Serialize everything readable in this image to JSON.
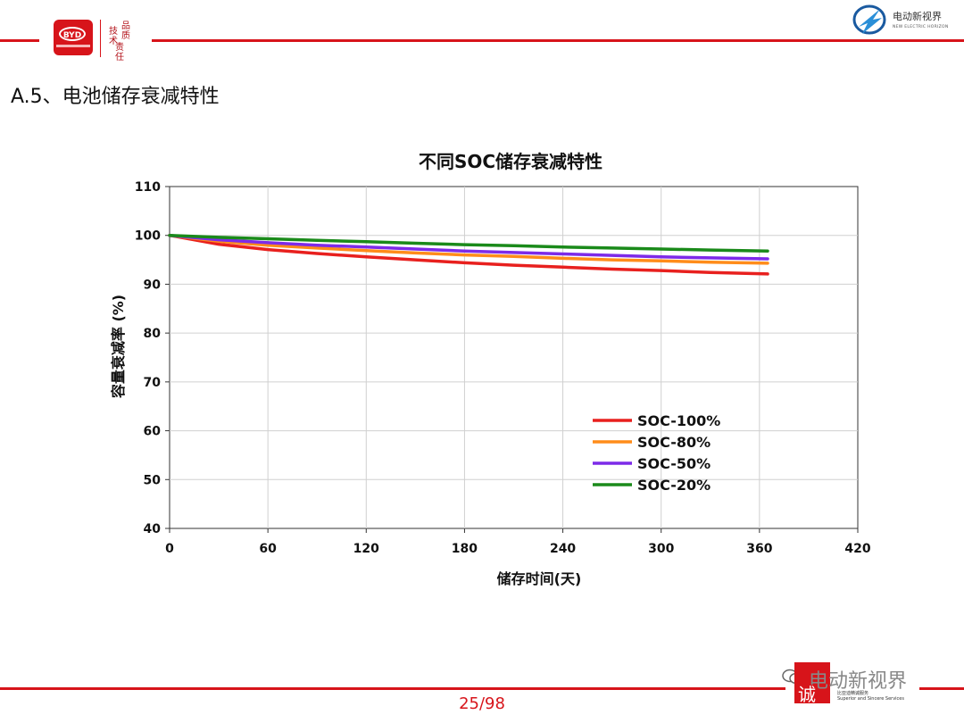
{
  "header": {
    "logo_text": "BYD",
    "seal_text": [
      "技术",
      "品质",
      "责任"
    ],
    "brand_title": "电动新视界",
    "brand_sub": "NEW ELECTRIC HORIZON",
    "accent_color": "#d7141a"
  },
  "page_heading": "A.5、电池储存衰减特性",
  "chart_data": {
    "type": "line",
    "title": "不同SOC储存衰减特性",
    "xlabel": "储存时间(天)",
    "ylabel": "容量衰减率 (%)",
    "xlim": [
      0,
      420
    ],
    "ylim": [
      40,
      110
    ],
    "xticks": [
      0,
      60,
      120,
      180,
      240,
      300,
      360,
      420
    ],
    "yticks": [
      40,
      50,
      60,
      70,
      80,
      90,
      100,
      110
    ],
    "grid": true,
    "legend_position": "lower-right",
    "series": [
      {
        "name": "SOC-100%",
        "color": "#e8201e",
        "x": [
          0,
          30,
          60,
          90,
          120,
          150,
          180,
          210,
          240,
          270,
          300,
          330,
          365
        ],
        "y": [
          100,
          98.2,
          97.1,
          96.3,
          95.6,
          95.0,
          94.4,
          93.9,
          93.5,
          93.1,
          92.8,
          92.4,
          92.1
        ]
      },
      {
        "name": "SOC-80%",
        "color": "#ff8c1a",
        "x": [
          0,
          30,
          60,
          90,
          120,
          150,
          180,
          210,
          240,
          270,
          300,
          330,
          365
        ],
        "y": [
          100,
          98.8,
          98.0,
          97.4,
          96.9,
          96.4,
          96.0,
          95.7,
          95.3,
          95.0,
          94.8,
          94.5,
          94.3
        ]
      },
      {
        "name": "SOC-50%",
        "color": "#7d2ae8",
        "x": [
          0,
          30,
          60,
          90,
          120,
          150,
          180,
          210,
          240,
          270,
          300,
          330,
          365
        ],
        "y": [
          100,
          99.1,
          98.5,
          98.0,
          97.6,
          97.2,
          96.8,
          96.5,
          96.2,
          95.9,
          95.6,
          95.4,
          95.2
        ]
      },
      {
        "name": "SOC-20%",
        "color": "#1a8a1a",
        "x": [
          0,
          30,
          60,
          90,
          120,
          150,
          180,
          210,
          240,
          270,
          300,
          330,
          365
        ],
        "y": [
          100,
          99.6,
          99.3,
          99.0,
          98.7,
          98.4,
          98.1,
          97.9,
          97.6,
          97.4,
          97.2,
          97.0,
          96.8
        ]
      }
    ]
  },
  "footer": {
    "page_number": "25/98",
    "badge_char": "诚",
    "company_lines": [
      "比亚迪精诚服务",
      "Superior and Sincere Services"
    ],
    "watermark": "电动新视界"
  }
}
